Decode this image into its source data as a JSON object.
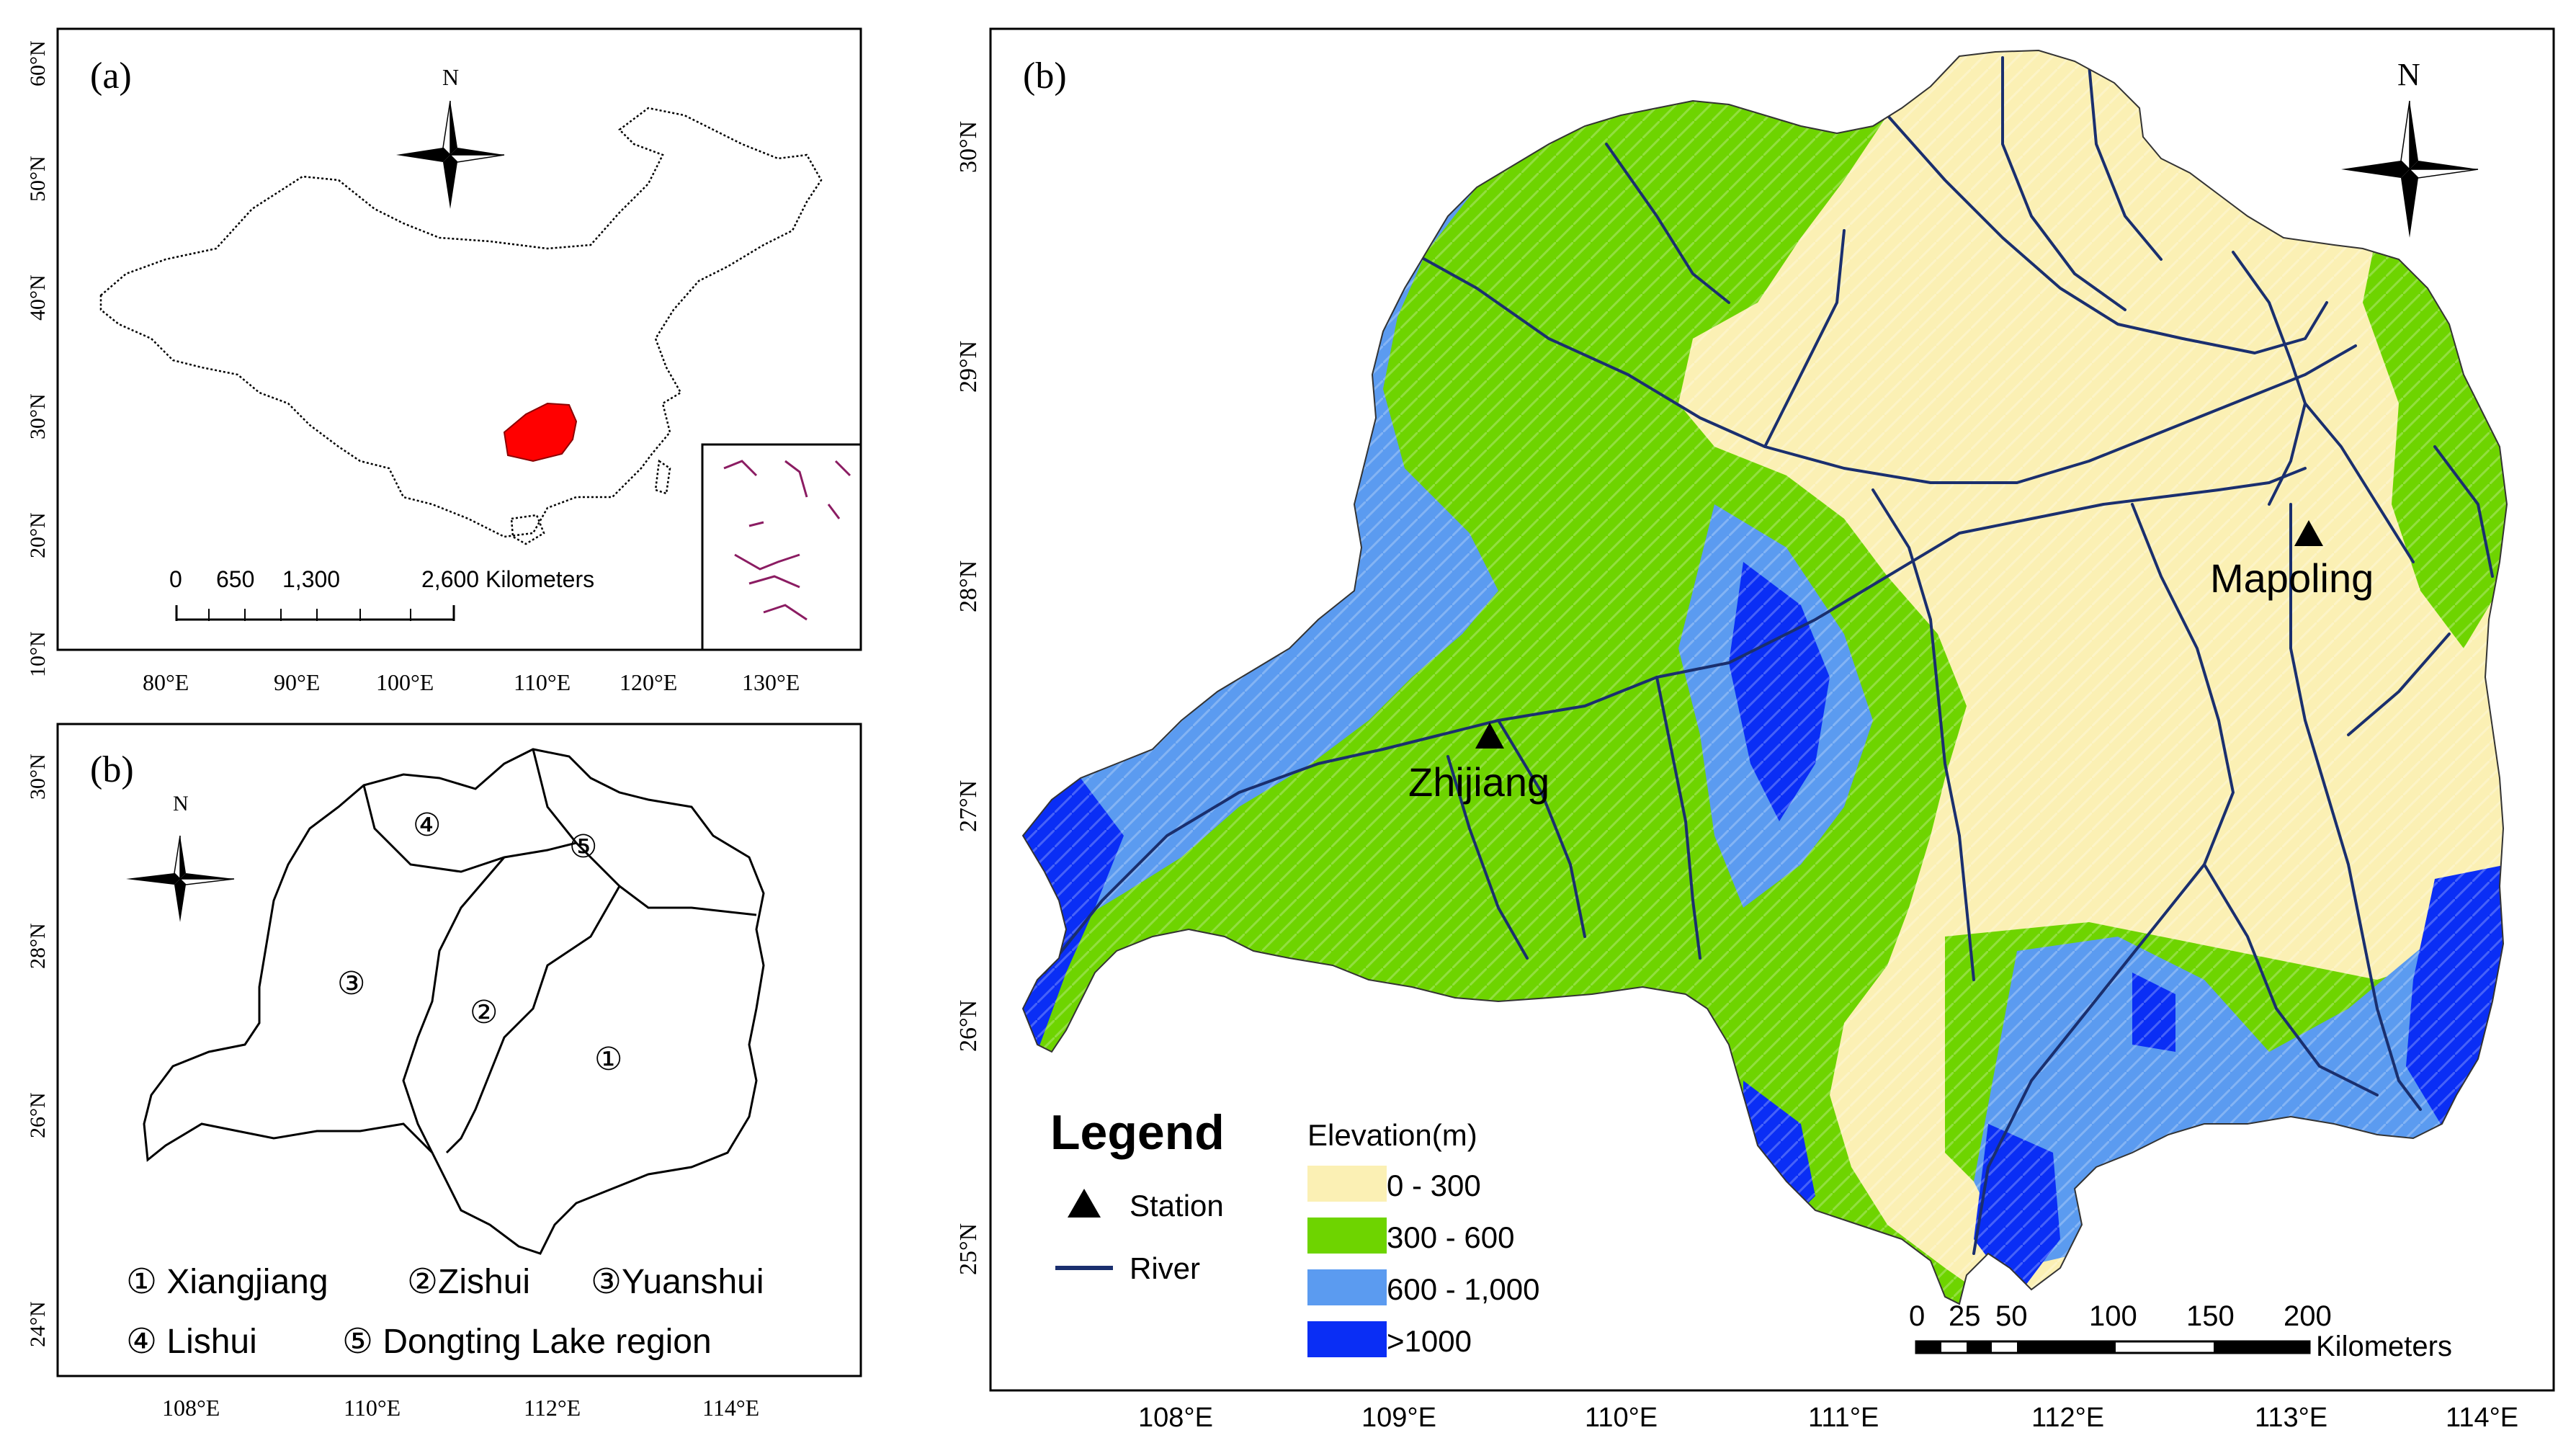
{
  "panel_a": {
    "label": "(a)",
    "north": "N",
    "lat_ticks": [
      "60°N",
      "50°N",
      "40°N",
      "30°N",
      "20°N",
      "10°N"
    ],
    "lon_ticks": [
      "80°E",
      "90°E",
      "100°E",
      "110°E",
      "120°E",
      "130°E"
    ],
    "scale_labels": [
      "0",
      "650",
      "1,300",
      "2,600 Kilometers"
    ],
    "colors": {
      "study_area": "#ff0000",
      "boundary": "#000000",
      "islands": "#8b1c62"
    }
  },
  "panel_b_left": {
    "label": "(b)",
    "north": "N",
    "lat_ticks": [
      "30°N",
      "28°N",
      "26°N",
      "24°N"
    ],
    "lon_ticks": [
      "108°E",
      "110°E",
      "112°E",
      "114°E"
    ],
    "subbasin_markers": [
      "④",
      "⑤",
      "③",
      "②",
      "①"
    ],
    "legend_row1": [
      "① Xiangjiang",
      "②Zishui",
      "③Yuanshui"
    ],
    "legend_row2": [
      "④ Lishui",
      "⑤ Dongting Lake region"
    ]
  },
  "panel_b_right": {
    "label": "(b)",
    "north": "N",
    "lat_ticks": [
      "30°N",
      "29°N",
      "28°N",
      "27°N",
      "26°N",
      "25°N"
    ],
    "lon_ticks": [
      "108°E",
      "109°E",
      "110°E",
      "111°E",
      "112°E",
      "113°E",
      "114°E"
    ],
    "stations": [
      "Mapoling",
      "Zhijiang"
    ],
    "legend": {
      "title": "Legend",
      "station": "Station",
      "river": "River",
      "elevation_title": "Elevation(m)",
      "classes": [
        {
          "label": "0 - 300",
          "color": "#fbf0b4"
        },
        {
          "label": "300 - 600",
          "color": "#6ed400"
        },
        {
          "label": "600 - 1,000",
          "color": "#5b9bf0"
        },
        {
          "label": ">1000",
          "color": "#0a2ef5"
        }
      ]
    },
    "scale_labels": [
      "0",
      "25",
      "50",
      "100",
      "150",
      "200"
    ],
    "scale_unit": "Kilometers",
    "colors": {
      "river": "#1a2f6e"
    }
  }
}
